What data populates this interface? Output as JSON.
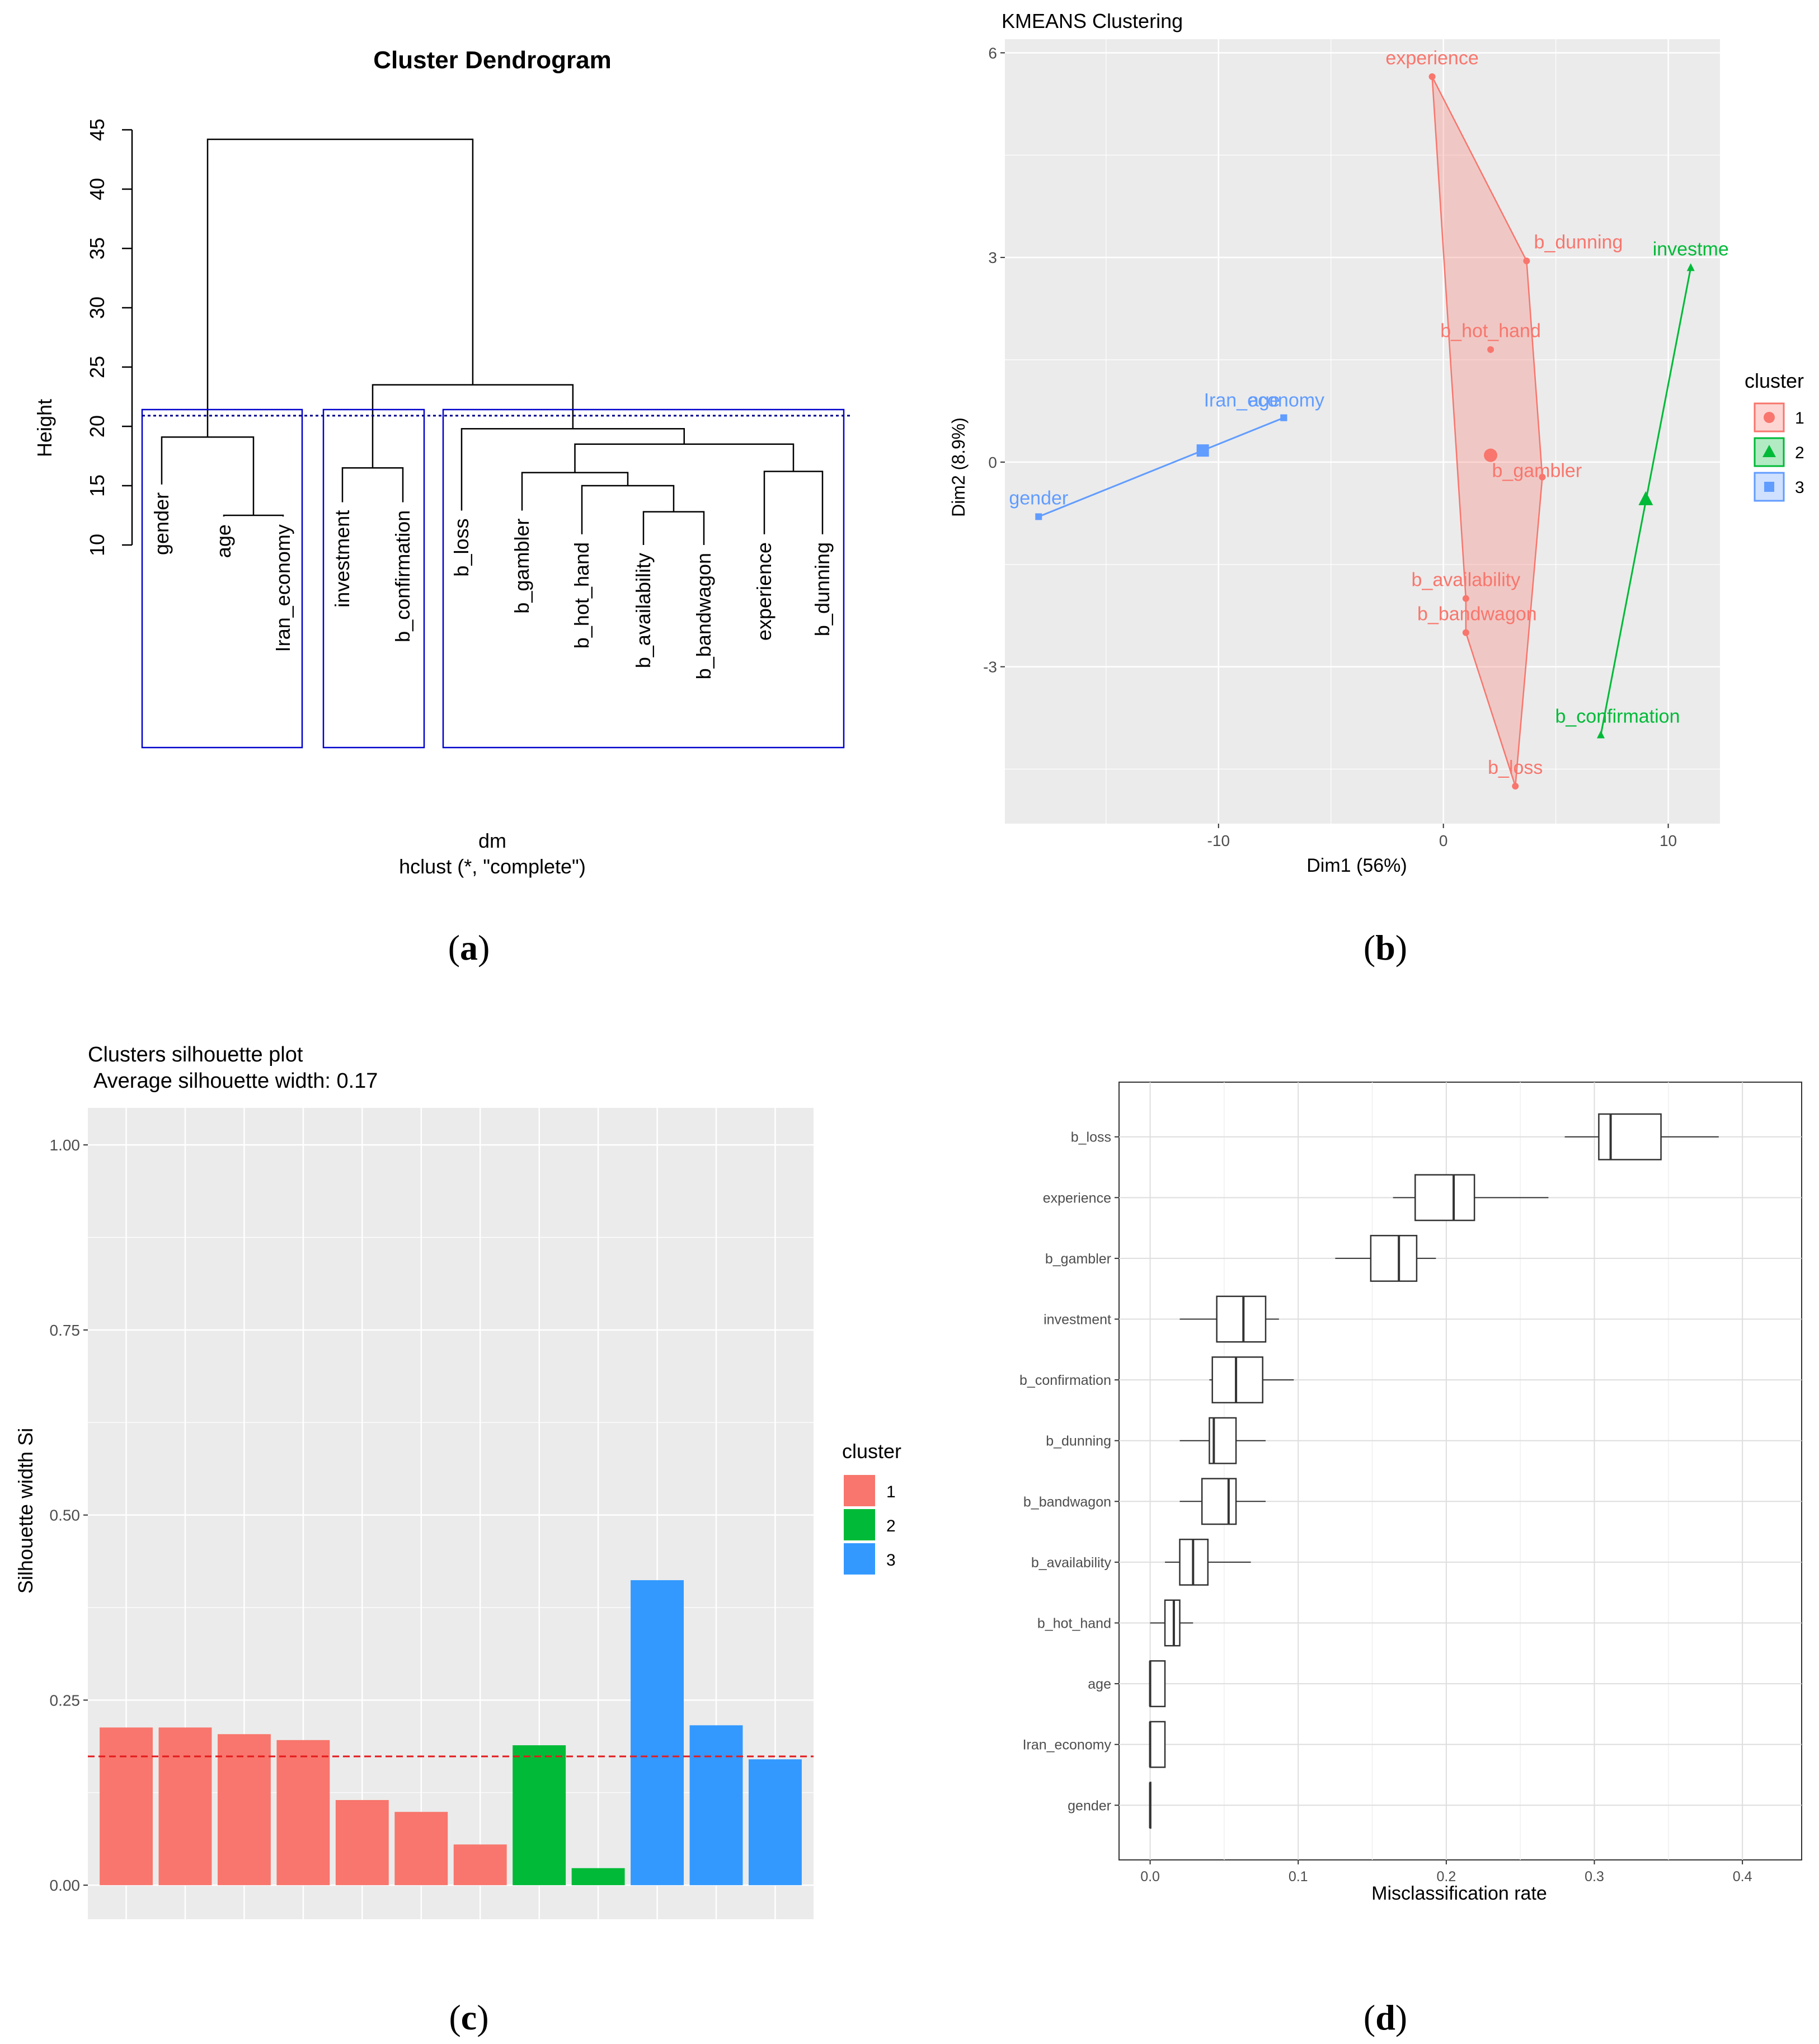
{
  "panels": {
    "a": {
      "label": "(a)",
      "bold": "a"
    },
    "b": {
      "label": "(b)",
      "bold": "b"
    },
    "c": {
      "label": "(c)",
      "bold": "c"
    },
    "d": {
      "label": "(d)",
      "bold": "d"
    }
  },
  "colors": {
    "cluster1": "#F8766D",
    "cluster2": "#00BA38",
    "cluster3": "#619CFF",
    "cluster3_bar": "#3399FF",
    "panel_bg": "#EBEBEB",
    "rect": "#0000CD",
    "cutline": "#00008B",
    "avgline": "#E41A1C"
  },
  "chart_data": [
    {
      "id": "a",
      "type": "dendrogram",
      "title": "Cluster Dendrogram",
      "ylabel": "Height",
      "xlabel": "dm",
      "subtitle": "hclust (*, \"complete\")",
      "ylim": [
        10,
        45
      ],
      "yticks": [
        10,
        15,
        20,
        25,
        30,
        35,
        40,
        45
      ],
      "cut_height": 20.9,
      "leaves": [
        "gender",
        "age",
        "Iran_economy",
        "investment",
        "b_confirmation",
        "b_loss",
        "b_gambler",
        "b_hot_hand",
        "b_availability",
        "b_bandwagon",
        "experience",
        "b_dunning"
      ],
      "merges": [
        {
          "left": "age",
          "right": "Iran_economy",
          "height": 12.5
        },
        {
          "left": "gender",
          "right": "[age+Iran_economy]",
          "height": 19.1
        },
        {
          "left": "investment",
          "right": "b_confirmation",
          "height": 16.5
        },
        {
          "left": "b_availability",
          "right": "b_bandwagon",
          "height": 12.8
        },
        {
          "left": "b_hot_hand",
          "right": "[b_availability+b_bandwagon]",
          "height": 15.0
        },
        {
          "left": "b_gambler",
          "right": "[b_hot_hand+...]",
          "height": 16.1
        },
        {
          "left": "experience",
          "right": "b_dunning",
          "height": 16.2
        },
        {
          "left": "[b_gambler+...]",
          "right": "[experience+b_dunning]",
          "height": 18.5
        },
        {
          "left": "b_loss",
          "right": "[b_gambler+...+b_dunning]",
          "height": 19.8
        },
        {
          "left": "[investment+b_confirmation]",
          "right": "[b_loss+...]",
          "height": 23.5
        },
        {
          "left": "[gender+age+Iran_economy]",
          "right": "[investment+...+b_dunning]",
          "height": 44.2
        }
      ],
      "cluster_boxes": [
        {
          "cluster": 1,
          "leaves": [
            "gender",
            "age",
            "Iran_economy"
          ]
        },
        {
          "cluster": 2,
          "leaves": [
            "investment",
            "b_confirmation"
          ]
        },
        {
          "cluster": 3,
          "leaves": [
            "b_loss",
            "b_gambler",
            "b_hot_hand",
            "b_availability",
            "b_bandwagon",
            "experience",
            "b_dunning"
          ]
        }
      ]
    },
    {
      "id": "b",
      "type": "scatter",
      "title": "KMEANS Clustering",
      "xlabel": "Dim1 (56%)",
      "ylabel": "Dim2 (8.9%)",
      "xlim": [
        -19.5,
        12.3
      ],
      "ylim": [
        -5.3,
        6.2
      ],
      "xticks": [
        -10,
        0,
        10
      ],
      "yticks": [
        -3,
        0,
        3,
        6
      ],
      "legend": {
        "title": "cluster",
        "position": "right",
        "entries": [
          "1",
          "2",
          "3"
        ]
      },
      "points": [
        {
          "name": "experience",
          "x": -0.5,
          "y": 5.65,
          "cluster": 1
        },
        {
          "name": "b_dunning",
          "x": 3.7,
          "y": 2.95,
          "cluster": 1
        },
        {
          "name": "b_hot_hand",
          "x": 2.1,
          "y": 1.65,
          "cluster": 1
        },
        {
          "name": "b_gambler",
          "x": 4.4,
          "y": -0.22,
          "cluster": 1
        },
        {
          "name": "b_availability",
          "x": 1.0,
          "y": -2.0,
          "cluster": 1
        },
        {
          "name": "b_bandwagon",
          "x": 1.0,
          "y": -2.5,
          "cluster": 1
        },
        {
          "name": "b_loss",
          "x": 3.2,
          "y": -4.75,
          "cluster": 1
        },
        {
          "name": "investme",
          "x": 11.0,
          "y": 2.85,
          "cluster": 2
        },
        {
          "name": "b_confirmation",
          "x": 7.0,
          "y": -4.0,
          "cluster": 2
        },
        {
          "name": "age",
          "x": -7.1,
          "y": 0.65,
          "cluster": 3
        },
        {
          "name": "Iran_economy",
          "x": -7.1,
          "y": 0.65,
          "cluster": 3
        },
        {
          "name": "gender",
          "x": -18.0,
          "y": -0.8,
          "cluster": 3
        }
      ],
      "centroids": [
        {
          "cluster": 1,
          "x": 2.1,
          "y": 0.1
        },
        {
          "cluster": 2,
          "x": 9.0,
          "y": -0.55
        },
        {
          "cluster": 3,
          "x": -10.7,
          "y": 0.17
        }
      ],
      "label_text": {
        "experience": "experience",
        "b_dunning": "b_dunning",
        "b_hot_hand": "b_hot_hand",
        "b_gambler": "b_gambler",
        "b_availability": "b_availability",
        "b_bandwagon": "b_bandwagon",
        "b_loss": "b_loss",
        "investme": "investme",
        "b_confirmation": "b_confirmation",
        "Iran_economy": "Iran_economy",
        "age": "age",
        "gender": "gender"
      }
    },
    {
      "id": "c",
      "type": "bar",
      "title": "Clusters silhouette plot",
      "subtitle": "Average silhouette width: 0.17",
      "xlabel": "",
      "ylabel": "Silhouette width Si",
      "ylim": [
        -0.046,
        1.05
      ],
      "yticks": [
        "0.00",
        "0.25",
        "0.50",
        "0.75",
        "1.00"
      ],
      "ytick_values": [
        0,
        0.25,
        0.5,
        0.75,
        1.0
      ],
      "average": 0.174,
      "legend": {
        "title": "cluster",
        "position": "right",
        "entries": [
          "1",
          "2",
          "3"
        ]
      },
      "values": [
        0.213,
        0.213,
        0.204,
        0.196,
        0.115,
        0.099,
        0.055,
        0.189,
        0.023,
        0.412,
        0.216,
        0.17
      ],
      "clusters": [
        1,
        1,
        1,
        1,
        1,
        1,
        1,
        2,
        2,
        3,
        3,
        3
      ]
    },
    {
      "id": "d",
      "type": "boxplot",
      "title": "",
      "xlabel": "Misclassification rate",
      "ylabel": "",
      "xlim": [
        -0.021,
        0.44
      ],
      "xticks": [
        "0.0",
        "0.1",
        "0.2",
        "0.3",
        "0.4"
      ],
      "xtick_values": [
        0,
        0.1,
        0.2,
        0.3,
        0.4
      ],
      "categories": [
        "b_loss",
        "experience",
        "b_gambler",
        "investment",
        "b_confirmation",
        "b_dunning",
        "b_bandwagon",
        "b_availability",
        "b_hot_hand",
        "age",
        "Iran_economy",
        "gender"
      ],
      "boxes": [
        {
          "min": 0.28,
          "q1": 0.303,
          "median": 0.311,
          "q3": 0.345,
          "max": 0.384
        },
        {
          "min": 0.164,
          "q1": 0.179,
          "median": 0.205,
          "q3": 0.219,
          "max": 0.269
        },
        {
          "min": 0.125,
          "q1": 0.149,
          "median": 0.168,
          "q3": 0.18,
          "max": 0.193
        },
        {
          "min": 0.02,
          "q1": 0.045,
          "median": 0.063,
          "q3": 0.078,
          "max": 0.087
        },
        {
          "min": 0.04,
          "q1": 0.042,
          "median": 0.058,
          "q3": 0.076,
          "max": 0.097
        },
        {
          "min": 0.02,
          "q1": 0.04,
          "median": 0.043,
          "q3": 0.058,
          "max": 0.078
        },
        {
          "min": 0.02,
          "q1": 0.035,
          "median": 0.053,
          "q3": 0.058,
          "max": 0.078
        },
        {
          "min": 0.01,
          "q1": 0.02,
          "median": 0.029,
          "q3": 0.039,
          "max": 0.068
        },
        {
          "min": 0.0,
          "q1": 0.01,
          "median": 0.016,
          "q3": 0.02,
          "max": 0.029
        },
        {
          "min": 0.0,
          "q1": 0.0,
          "median": 0.0,
          "q3": 0.01,
          "max": 0.01
        },
        {
          "min": 0.0,
          "q1": 0.0,
          "median": 0.0,
          "q3": 0.01,
          "max": 0.01
        },
        {
          "min": 0.0,
          "q1": 0.0,
          "median": 0.0,
          "q3": 0.0,
          "max": 0.0
        }
      ]
    }
  ]
}
